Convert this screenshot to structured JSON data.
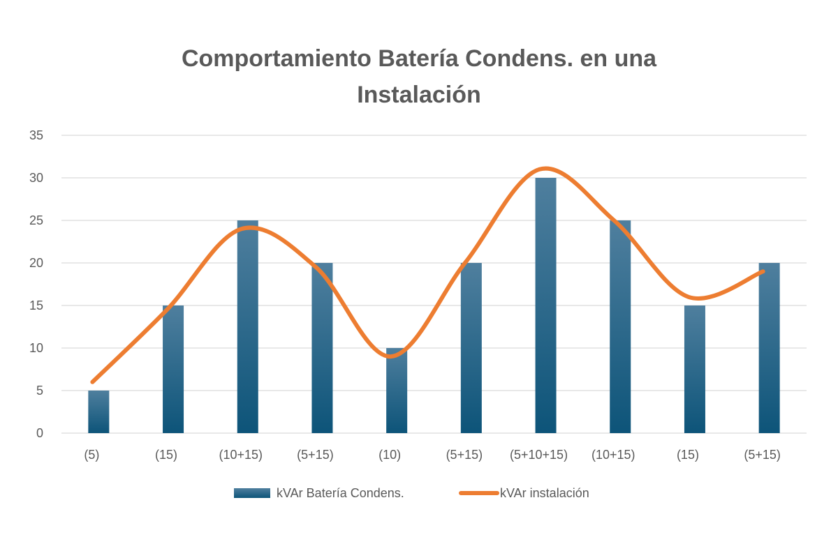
{
  "chart_data": {
    "type": "bar",
    "title_lines": [
      "Comportamiento  Batería  Condens.  en una",
      "Instalación"
    ],
    "categories": [
      "(5)",
      "(15)",
      "(10+15)",
      "(5+15)",
      "(10)",
      "(5+15)",
      "(5+10+15)",
      "(10+15)",
      "(15)",
      "(5+15)"
    ],
    "series": [
      {
        "name": "kVAr Batería Condens.",
        "kind": "bar",
        "color": "#2e6889",
        "values": [
          5,
          15,
          25,
          20,
          10,
          20,
          30,
          25,
          15,
          20
        ]
      },
      {
        "name": "kVAr instalación",
        "kind": "line",
        "smooth": true,
        "color": "#ed7d31",
        "values": [
          6,
          14.5,
          24,
          19.5,
          9,
          20,
          31,
          25,
          16,
          19
        ]
      }
    ],
    "ylim": [
      0,
      35
    ],
    "yticks": [
      0,
      5,
      10,
      15,
      20,
      25,
      30,
      35
    ],
    "grid": true,
    "legend_position": "bottom"
  }
}
